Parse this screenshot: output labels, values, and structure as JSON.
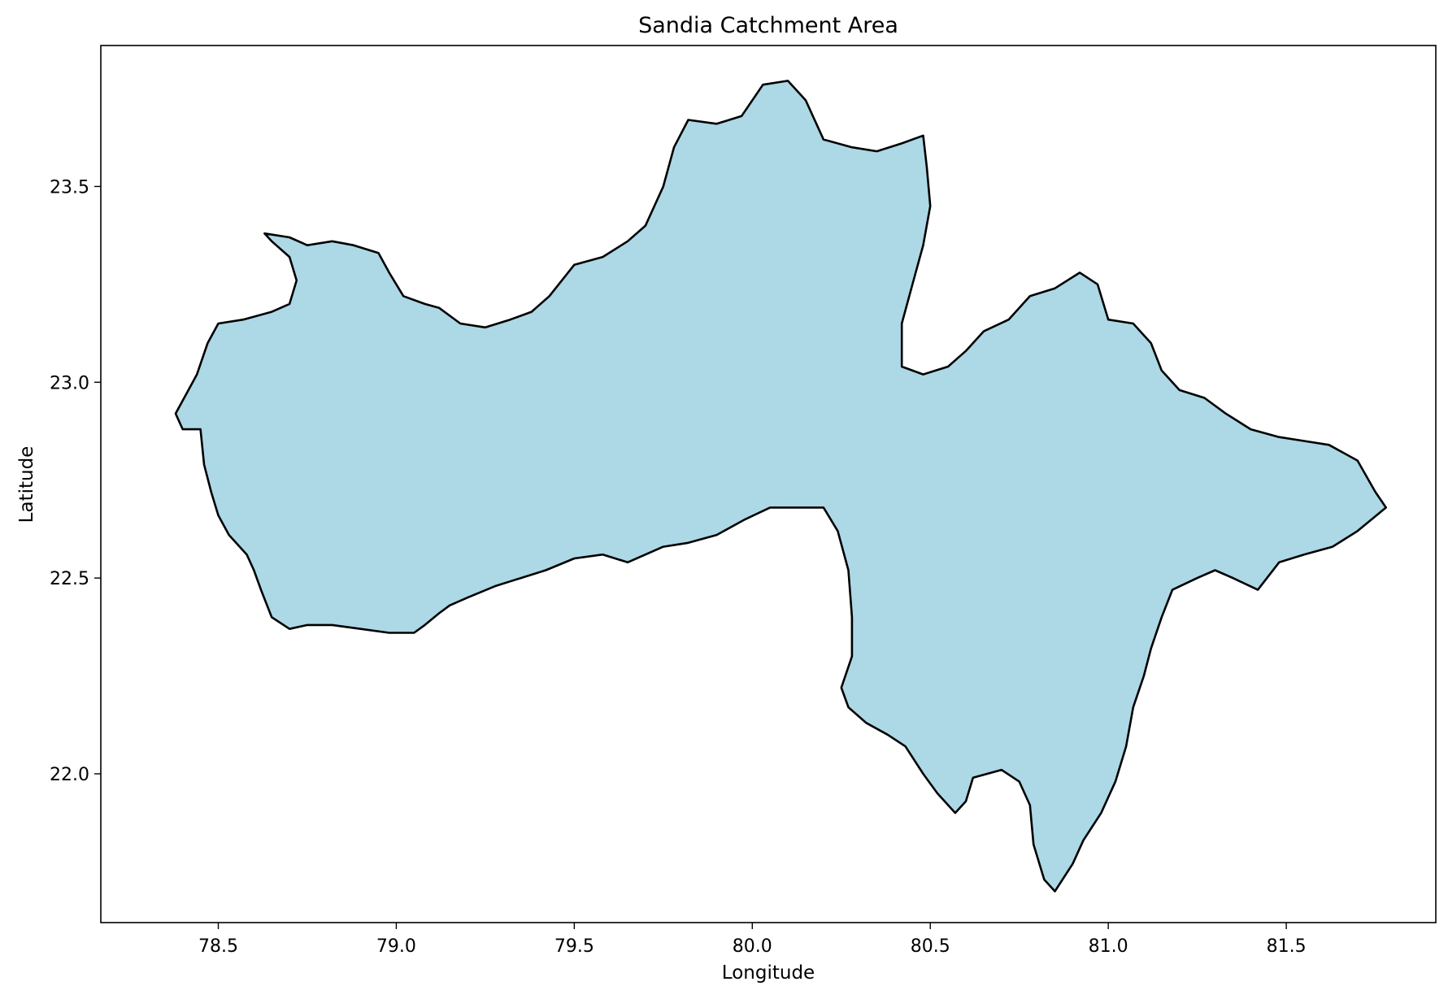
{
  "chart_data": {
    "type": "map",
    "title": "Sandia Catchment Area",
    "xlabel": "Longitude",
    "ylabel": "Latitude",
    "xlim": [
      78.17,
      81.92
    ],
    "ylim": [
      21.62,
      23.86
    ],
    "xticks": [
      78.5,
      79.0,
      79.5,
      80.0,
      80.5,
      81.0,
      81.5
    ],
    "xtick_labels": [
      "78.5",
      "79.0",
      "79.5",
      "80.0",
      "80.5",
      "81.0",
      "81.5"
    ],
    "yticks": [
      22.0,
      22.5,
      23.0,
      23.5
    ],
    "ytick_labels": [
      "22.0",
      "22.5",
      "23.0",
      "23.5"
    ],
    "grid": false,
    "fill_color": "#add8e6",
    "edge_color": "#000000",
    "boundary": [
      [
        78.63,
        23.38
      ],
      [
        78.7,
        23.37
      ],
      [
        78.75,
        23.35
      ],
      [
        78.82,
        23.36
      ],
      [
        78.88,
        23.35
      ],
      [
        78.95,
        23.33
      ],
      [
        78.98,
        23.28
      ],
      [
        79.02,
        23.22
      ],
      [
        79.08,
        23.2
      ],
      [
        79.12,
        23.19
      ],
      [
        79.18,
        23.15
      ],
      [
        79.25,
        23.14
      ],
      [
        79.32,
        23.16
      ],
      [
        79.38,
        23.18
      ],
      [
        79.43,
        23.22
      ],
      [
        79.5,
        23.3
      ],
      [
        79.58,
        23.32
      ],
      [
        79.65,
        23.36
      ],
      [
        79.7,
        23.4
      ],
      [
        79.75,
        23.5
      ],
      [
        79.78,
        23.6
      ],
      [
        79.82,
        23.67
      ],
      [
        79.9,
        23.66
      ],
      [
        79.97,
        23.68
      ],
      [
        80.03,
        23.76
      ],
      [
        80.1,
        23.77
      ],
      [
        80.15,
        23.72
      ],
      [
        80.2,
        23.62
      ],
      [
        80.28,
        23.6
      ],
      [
        80.35,
        23.59
      ],
      [
        80.42,
        23.61
      ],
      [
        80.48,
        23.63
      ],
      [
        80.49,
        23.55
      ],
      [
        80.5,
        23.45
      ],
      [
        80.48,
        23.35
      ],
      [
        80.45,
        23.25
      ],
      [
        80.42,
        23.15
      ],
      [
        80.42,
        23.04
      ],
      [
        80.48,
        23.02
      ],
      [
        80.55,
        23.04
      ],
      [
        80.6,
        23.08
      ],
      [
        80.65,
        23.13
      ],
      [
        80.72,
        23.16
      ],
      [
        80.78,
        23.22
      ],
      [
        80.85,
        23.24
      ],
      [
        80.92,
        23.28
      ],
      [
        80.97,
        23.25
      ],
      [
        81.0,
        23.16
      ],
      [
        81.07,
        23.15
      ],
      [
        81.12,
        23.1
      ],
      [
        81.15,
        23.03
      ],
      [
        81.2,
        22.98
      ],
      [
        81.27,
        22.96
      ],
      [
        81.33,
        22.92
      ],
      [
        81.4,
        22.88
      ],
      [
        81.48,
        22.86
      ],
      [
        81.55,
        22.85
      ],
      [
        81.62,
        22.84
      ],
      [
        81.7,
        22.8
      ],
      [
        81.75,
        22.72
      ],
      [
        81.78,
        22.68
      ],
      [
        81.7,
        22.62
      ],
      [
        81.63,
        22.58
      ],
      [
        81.55,
        22.56
      ],
      [
        81.48,
        22.54
      ],
      [
        81.42,
        22.47
      ],
      [
        81.35,
        22.5
      ],
      [
        81.3,
        22.52
      ],
      [
        81.25,
        22.5
      ],
      [
        81.18,
        22.47
      ],
      [
        81.15,
        22.4
      ],
      [
        81.12,
        22.32
      ],
      [
        81.1,
        22.25
      ],
      [
        81.07,
        22.17
      ],
      [
        81.05,
        22.07
      ],
      [
        81.02,
        21.98
      ],
      [
        80.98,
        21.9
      ],
      [
        80.93,
        21.83
      ],
      [
        80.9,
        21.77
      ],
      [
        80.85,
        21.7
      ],
      [
        80.82,
        21.73
      ],
      [
        80.79,
        21.82
      ],
      [
        80.78,
        21.92
      ],
      [
        80.75,
        21.98
      ],
      [
        80.7,
        22.01
      ],
      [
        80.62,
        21.99
      ],
      [
        80.6,
        21.93
      ],
      [
        80.57,
        21.9
      ],
      [
        80.52,
        21.95
      ],
      [
        80.48,
        22.0
      ],
      [
        80.43,
        22.07
      ],
      [
        80.38,
        22.1
      ],
      [
        80.32,
        22.13
      ],
      [
        80.27,
        22.17
      ],
      [
        80.25,
        22.22
      ],
      [
        80.28,
        22.3
      ],
      [
        80.28,
        22.4
      ],
      [
        80.27,
        22.52
      ],
      [
        80.24,
        22.62
      ],
      [
        80.2,
        22.68
      ],
      [
        80.12,
        22.68
      ],
      [
        80.05,
        22.68
      ],
      [
        79.98,
        22.65
      ],
      [
        79.9,
        22.61
      ],
      [
        79.82,
        22.59
      ],
      [
        79.75,
        22.58
      ],
      [
        79.7,
        22.56
      ],
      [
        79.65,
        22.54
      ],
      [
        79.58,
        22.56
      ],
      [
        79.5,
        22.55
      ],
      [
        79.42,
        22.52
      ],
      [
        79.35,
        22.5
      ],
      [
        79.28,
        22.48
      ],
      [
        79.2,
        22.45
      ],
      [
        79.15,
        22.43
      ],
      [
        79.12,
        22.41
      ],
      [
        79.08,
        22.38
      ],
      [
        79.05,
        22.36
      ],
      [
        78.98,
        22.36
      ],
      [
        78.9,
        22.37
      ],
      [
        78.82,
        22.38
      ],
      [
        78.75,
        22.38
      ],
      [
        78.7,
        22.37
      ],
      [
        78.65,
        22.4
      ],
      [
        78.62,
        22.47
      ],
      [
        78.6,
        22.52
      ],
      [
        78.58,
        22.56
      ],
      [
        78.53,
        22.61
      ],
      [
        78.5,
        22.66
      ],
      [
        78.48,
        22.72
      ],
      [
        78.46,
        22.79
      ],
      [
        78.45,
        22.88
      ],
      [
        78.4,
        22.88
      ],
      [
        78.38,
        22.92
      ],
      [
        78.41,
        22.97
      ],
      [
        78.44,
        23.02
      ],
      [
        78.47,
        23.1
      ],
      [
        78.5,
        23.15
      ],
      [
        78.57,
        23.16
      ],
      [
        78.65,
        23.18
      ],
      [
        78.7,
        23.2
      ],
      [
        78.72,
        23.26
      ],
      [
        78.7,
        23.32
      ],
      [
        78.65,
        23.36
      ],
      [
        78.63,
        23.38
      ]
    ]
  }
}
